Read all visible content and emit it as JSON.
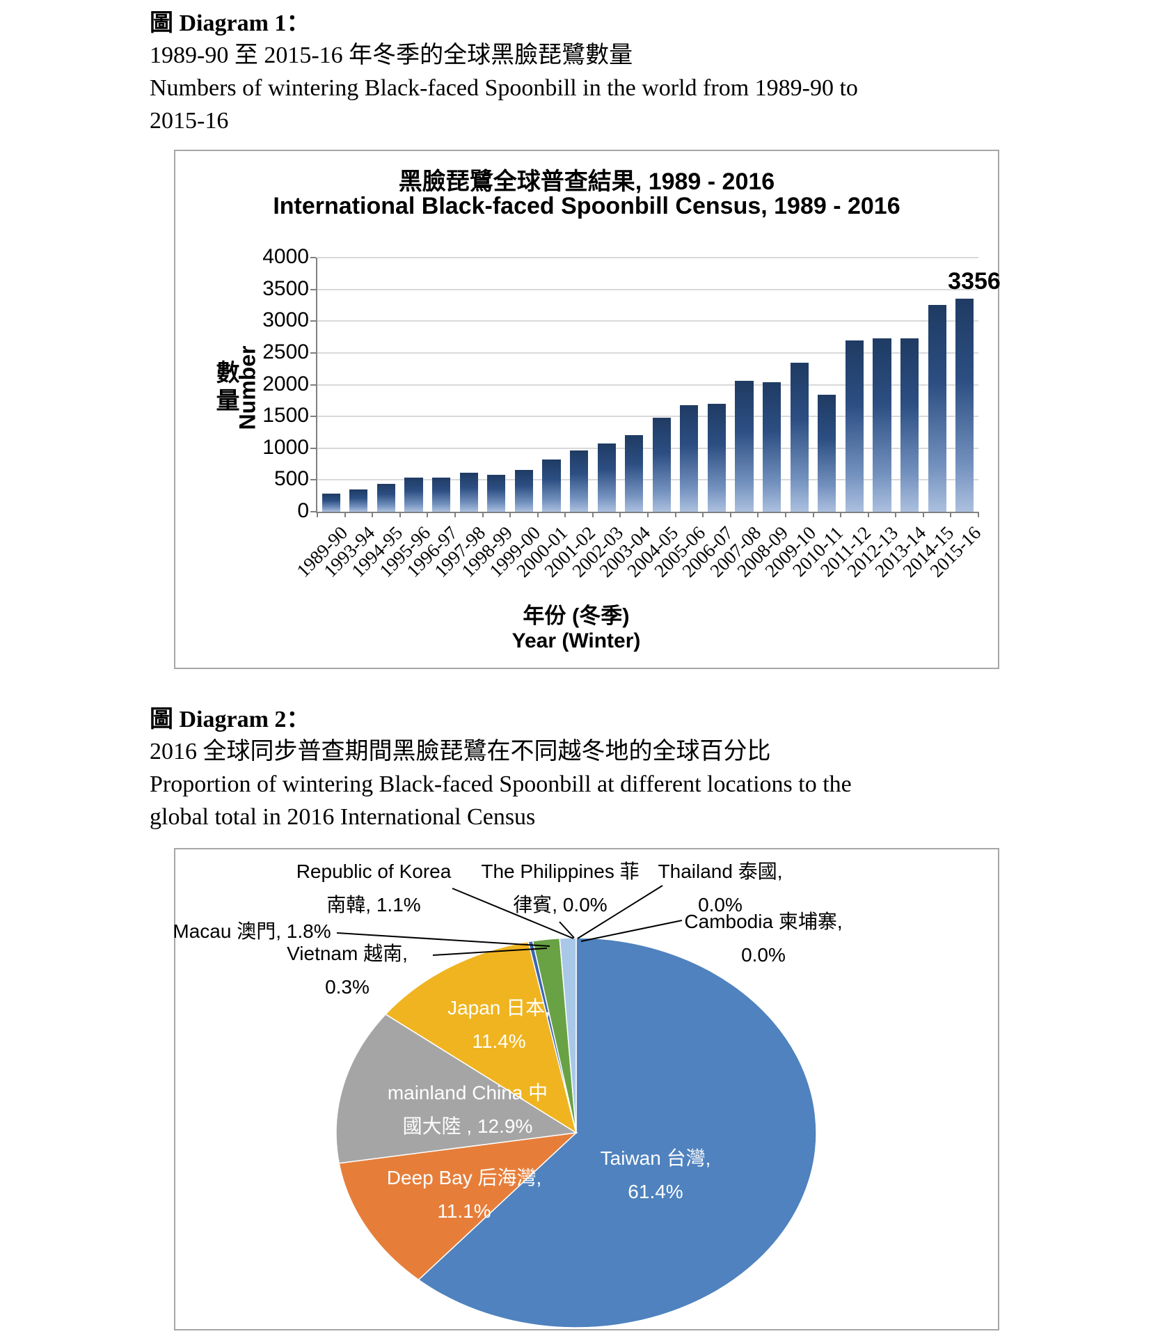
{
  "document": {
    "diagram1": {
      "heading": "圖 Diagram 1：",
      "caption_zh": "1989-90 至 2015-16 年冬季的全球黑臉琵鷺數量",
      "caption_en_line1": "Numbers of wintering Black-faced Spoonbill in the world from 1989-90 to",
      "caption_en_line2": "2015-16"
    },
    "diagram2": {
      "heading": "圖 Diagram 2：",
      "caption_zh": "2016 全球同步普查期間黑臉琵鷺在不同越冬地的全球百分比",
      "caption_en_line1": "Proportion of wintering Black-faced Spoonbill at different locations to the",
      "caption_en_line2": "global total in 2016 International Census"
    }
  },
  "chart_data": [
    {
      "type": "bar",
      "title_zh": "黑臉琵鷺全球普查結果, 1989 - 2016",
      "title_en": "International Black-faced Spoonbill Census, 1989 - 2016",
      "ylabel_zh": "數量",
      "ylabel_en": "Number",
      "xlabel_zh": "年份 (冬季)",
      "xlabel_en": "Year (Winter)",
      "ylim": [
        0,
        4000
      ],
      "yticks": [
        0,
        500,
        1000,
        1500,
        2000,
        2500,
        3000,
        3500,
        4000
      ],
      "grid": "on",
      "categories": [
        "1989-90",
        "1993-94",
        "1994-95",
        "1995-96",
        "1996-97",
        "1997-98",
        "1998-99",
        "1999-00",
        "2000-01",
        "2001-02",
        "2002-03",
        "2003-04",
        "2004-05",
        "2005-06",
        "2006-07",
        "2007-08",
        "2008-09",
        "2009-10",
        "2010-11",
        "2011-12",
        "2012-13",
        "2013-14",
        "2014-15",
        "2015-16"
      ],
      "values": [
        288,
        351,
        440,
        536,
        535,
        613,
        585,
        660,
        825,
        969,
        1069,
        1206,
        1475,
        1679,
        1695,
        2065,
        2041,
        2347,
        1839,
        2693,
        2725,
        2726,
        3259,
        3356
      ],
      "data_label": {
        "category": "2015-16",
        "value": 3356,
        "text": "3356"
      },
      "colors": {
        "bar_top": "#1F3B63",
        "bar_mid": "#2C4E82",
        "bar_low": "#7391BE",
        "bar_bottom": "#ACC0DF",
        "gridline": "#D9D9D9",
        "axis": "#808080",
        "box_border": "#A6A6A6"
      }
    },
    {
      "type": "pie",
      "start_angle_deg": 0,
      "direction": "clockwise",
      "slices": [
        {
          "key": "taiwan",
          "name_en": "Taiwan",
          "name_zh": "台灣",
          "pct": 61.4,
          "color": "#4F82BE"
        },
        {
          "key": "deepbay",
          "name_en": "Deep Bay",
          "name_zh": "后海灣",
          "pct": 11.1,
          "color": "#E67E3A"
        },
        {
          "key": "china",
          "name_en": "mainland China",
          "name_zh": "中國大陸",
          "pct": 12.9,
          "color": "#A5A5A5"
        },
        {
          "key": "japan",
          "name_en": "Japan",
          "name_zh": "日本",
          "pct": 11.4,
          "color": "#EFB420"
        },
        {
          "key": "vietnam",
          "name_en": "Vietnam",
          "name_zh": "越南",
          "pct": 0.3,
          "color": "#3B66B0"
        },
        {
          "key": "macau",
          "name_en": "Macau",
          "name_zh": "澳門",
          "pct": 1.8,
          "color": "#69A244"
        },
        {
          "key": "korea",
          "name_en": "Republic of Korea",
          "name_zh": "南韓",
          "pct": 1.1,
          "color": "#A9C8E8"
        },
        {
          "key": "philippines",
          "name_en": "The Philippines",
          "name_zh": "菲律賓",
          "pct": 0.0,
          "color": null
        },
        {
          "key": "thailand",
          "name_en": "Thailand",
          "name_zh": "泰國",
          "pct": 0.0,
          "color": null
        },
        {
          "key": "cambodia",
          "name_en": "Cambodia",
          "name_zh": "柬埔寨",
          "pct": 0.0,
          "color": null
        }
      ],
      "labels_inside": [
        {
          "key": "taiwan",
          "lines": [
            "Taiwan 台灣,",
            "61.4%"
          ]
        },
        {
          "key": "deepbay",
          "lines": [
            "Deep Bay 后海灣,",
            "11.1%"
          ]
        },
        {
          "key": "china",
          "lines": [
            "mainland China 中",
            "國大陸 , 12.9%"
          ]
        },
        {
          "key": "japan",
          "lines": [
            "Japan 日本,",
            "11.4%"
          ]
        }
      ],
      "labels_outside": [
        {
          "key": "korea",
          "lines": [
            "Republic of Korea",
            "南韓, 1.1%"
          ]
        },
        {
          "key": "philippines",
          "lines": [
            "The Philippines 菲",
            "律賓, 0.0%"
          ]
        },
        {
          "key": "thailand",
          "lines": [
            "Thailand 泰國,",
            "0.0%"
          ]
        },
        {
          "key": "cambodia",
          "lines": [
            "Cambodia 柬埔寨,",
            "0.0%"
          ]
        },
        {
          "key": "macau",
          "lines": [
            "Macau 澳門, 1.8%"
          ]
        },
        {
          "key": "vietnam",
          "lines": [
            "Vietnam 越南,",
            "0.3%"
          ]
        }
      ]
    }
  ]
}
